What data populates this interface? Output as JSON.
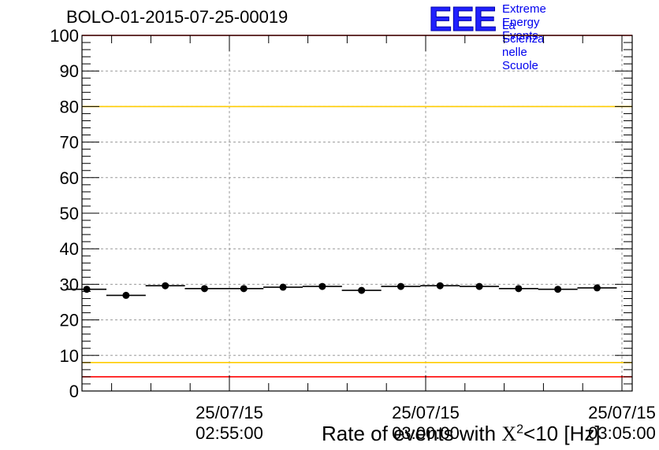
{
  "header": {
    "title": "BOLO-01-2015-07-25-00019",
    "logo_text": "EEE",
    "logo_line1": "Extreme Energy Events",
    "logo_line2": "La Scienza nelle Scuole"
  },
  "chart_data": {
    "type": "scatter",
    "title": "BOLO-01-2015-07-25-00019",
    "xlabel_prefix": "Rate of events with ",
    "xlabel_chi": "X",
    "xlabel_exp": "2",
    "xlabel_suffix": "<10 [Hz]",
    "ylabel": "",
    "ylim": [
      0,
      100
    ],
    "yticks": [
      "0",
      "10",
      "20",
      "30",
      "40",
      "50",
      "60",
      "70",
      "80",
      "90",
      "100"
    ],
    "xticks": [
      {
        "date": "25/07/15",
        "time": "02:55:00"
      },
      {
        "date": "25/07/15",
        "time": "03:00:00"
      },
      {
        "date": "25/07/15",
        "time": "03:05:00"
      }
    ],
    "grid": true,
    "reference_lines": [
      {
        "y": 100,
        "color": "#ff0000"
      },
      {
        "y": 80,
        "color": "#ffcc00"
      },
      {
        "y": 8,
        "color": "#ffcc00"
      },
      {
        "y": 4,
        "color": "#ff0000"
      }
    ],
    "points": [
      {
        "x": "02:51:22",
        "y": 28.6
      },
      {
        "x": "02:52:22",
        "y": 26.9
      },
      {
        "x": "02:53:22",
        "y": 29.6
      },
      {
        "x": "02:54:22",
        "y": 28.8
      },
      {
        "x": "02:55:22",
        "y": 28.8
      },
      {
        "x": "02:56:22",
        "y": 29.2
      },
      {
        "x": "02:57:22",
        "y": 29.4
      },
      {
        "x": "02:58:22",
        "y": 28.3
      },
      {
        "x": "02:59:22",
        "y": 29.4
      },
      {
        "x": "03:00:22",
        "y": 29.6
      },
      {
        "x": "03:01:22",
        "y": 29.4
      },
      {
        "x": "03:02:22",
        "y": 28.8
      },
      {
        "x": "03:03:22",
        "y": 28.6
      },
      {
        "x": "03:04:22",
        "y": 29.0
      }
    ],
    "marker_color": "#000000"
  }
}
